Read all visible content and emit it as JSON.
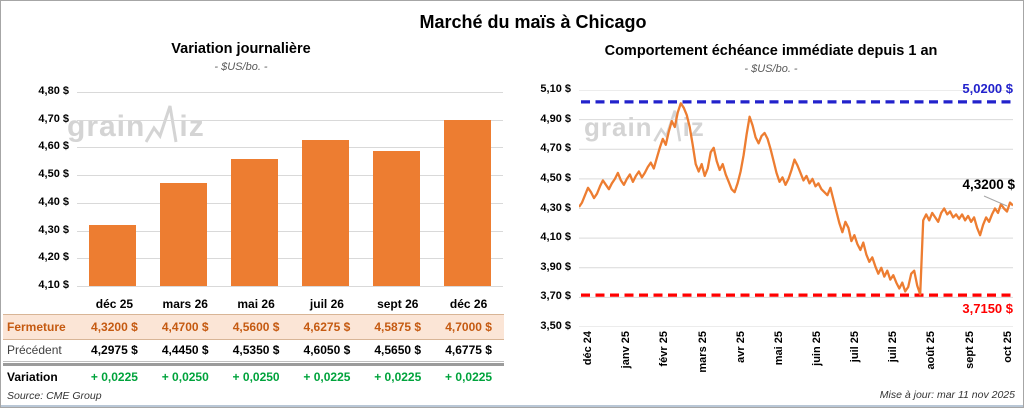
{
  "page": {
    "title": "Marché du maïs à Chicago",
    "source": "Source: CME Group",
    "updated": "Mise à jour: mar 11 nov 2025",
    "watermark": {
      "prefix": "grain",
      "suffix": "iz"
    }
  },
  "colors": {
    "accent_orange": "#ED7D31",
    "high_blue": "#2222CC",
    "low_red": "#FF0000",
    "variation_green": "#00A33C",
    "fermeture_bg": "#FBE5D6",
    "fermeture_text": "#C55A11",
    "gridline": "#D9D9D9"
  },
  "chart_data": [
    {
      "type": "bar",
      "title": "Variation journalière",
      "subtitle": "- $US/bo. -",
      "categories": [
        "déc 25",
        "mars 26",
        "mai 26",
        "juil 26",
        "sept 26",
        "déc 26"
      ],
      "values": [
        4.32,
        4.47,
        4.56,
        4.6275,
        4.5875,
        4.7
      ],
      "ylim": [
        4.1,
        4.8
      ],
      "y_tick_labels": [
        "4,80 $",
        "4,70 $",
        "4,60 $",
        "4,50 $",
        "4,40 $",
        "4,30 $",
        "4,20 $",
        "4,10 $"
      ],
      "bar_color": "#ED7D31",
      "grid": true,
      "legend": "none"
    },
    {
      "type": "line",
      "title": "Comportement échéance immédiate depuis 1 an",
      "subtitle": "- $US/bo. -",
      "x_tick_labels": [
        "déc 24",
        "janv 25",
        "févr 25",
        "mars 25",
        "avr 25",
        "mai 25",
        "juin 25",
        "juil 25",
        "juil 25",
        "août 25",
        "sept 25",
        "oct 25"
      ],
      "y_tick_labels": [
        "5,10 $",
        "4,90 $",
        "4,70 $",
        "4,50 $",
        "4,30 $",
        "4,10 $",
        "3,90 $",
        "3,70 $",
        "3,50 $"
      ],
      "ylim": [
        3.5,
        5.1
      ],
      "line_color": "#ED7D31",
      "grid": true,
      "legend": "none",
      "reference_lines": [
        {
          "value": 5.02,
          "label": "5,0200 $",
          "color": "#2222CC",
          "style": "dashed"
        },
        {
          "value": 3.715,
          "label": "3,7150 $",
          "color": "#FF0000",
          "style": "dashed"
        }
      ],
      "last_value": 4.32,
      "last_value_label": "4,3200 $",
      "values": [
        4.31,
        4.34,
        4.39,
        4.44,
        4.41,
        4.37,
        4.4,
        4.45,
        4.49,
        4.46,
        4.43,
        4.47,
        4.5,
        4.54,
        4.49,
        4.46,
        4.5,
        4.53,
        4.48,
        4.52,
        4.55,
        4.51,
        4.54,
        4.58,
        4.61,
        4.57,
        4.64,
        4.71,
        4.77,
        4.73,
        4.82,
        4.89,
        4.85,
        4.95,
        5.01,
        4.98,
        4.93,
        4.85,
        4.73,
        4.6,
        4.55,
        4.6,
        4.52,
        4.57,
        4.68,
        4.71,
        4.62,
        4.56,
        4.6,
        4.53,
        4.48,
        4.43,
        4.41,
        4.47,
        4.55,
        4.66,
        4.8,
        4.92,
        4.86,
        4.78,
        4.74,
        4.79,
        4.81,
        4.77,
        4.7,
        4.62,
        4.54,
        4.48,
        4.51,
        4.46,
        4.5,
        4.56,
        4.63,
        4.59,
        4.54,
        4.49,
        4.52,
        4.47,
        4.5,
        4.45,
        4.47,
        4.43,
        4.41,
        4.39,
        4.44,
        4.36,
        4.28,
        4.2,
        4.14,
        4.21,
        4.17,
        4.08,
        4.12,
        4.06,
        4.02,
        4.07,
        3.99,
        3.94,
        3.97,
        3.91,
        3.86,
        3.9,
        3.84,
        3.88,
        3.82,
        3.85,
        3.8,
        3.76,
        3.8,
        3.74,
        3.77,
        3.86,
        3.88,
        3.78,
        3.72,
        4.22,
        4.26,
        4.22,
        4.27,
        4.24,
        4.21,
        4.27,
        4.3,
        4.26,
        4.28,
        4.24,
        4.26,
        4.23,
        4.26,
        4.22,
        4.25,
        4.21,
        4.24,
        4.17,
        4.12,
        4.19,
        4.24,
        4.21,
        4.26,
        4.3,
        4.27,
        4.33,
        4.3,
        4.28,
        4.34,
        4.32
      ]
    }
  ],
  "table": {
    "header": [
      "déc 25",
      "mars 26",
      "mai 26",
      "juil 26",
      "sept 26",
      "déc 26"
    ],
    "rows": [
      {
        "label": "Fermeture",
        "values": [
          "4,3200 $",
          "4,4700 $",
          "4,5600 $",
          "4,6275 $",
          "4,5875 $",
          "4,7000 $"
        ]
      },
      {
        "label": "Précédent",
        "values": [
          "4,2975 $",
          "4,4450 $",
          "4,5350 $",
          "4,6050 $",
          "4,5650 $",
          "4,6775 $"
        ]
      },
      {
        "label": "Variation",
        "values": [
          "+ 0,0225",
          "+ 0,0250",
          "+ 0,0250",
          "+ 0,0225",
          "+ 0,0225",
          "+ 0,0225"
        ]
      }
    ]
  }
}
